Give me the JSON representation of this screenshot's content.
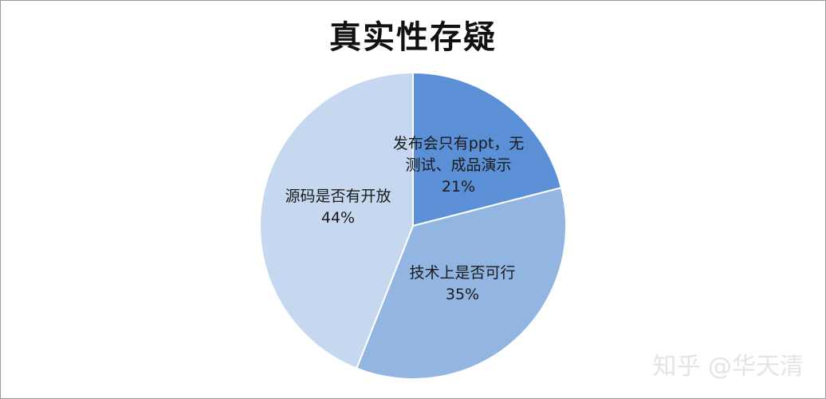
{
  "watermark": "知乎 @华天清",
  "chart_data": {
    "type": "pie",
    "title": "真实性存疑",
    "slices": [
      {
        "label_lines": [
          "发布会只有ppt，无",
          "测试、成品演示"
        ],
        "value": 21,
        "percent": "21%",
        "color": "#5b8fd6"
      },
      {
        "label_lines": [
          "技术上是否可行"
        ],
        "value": 35,
        "percent": "35%",
        "color": "#92b5e2"
      },
      {
        "label_lines": [
          "源码是否有开放"
        ],
        "value": 44,
        "percent": "44%",
        "color": "#c5d8ef"
      }
    ],
    "start": "12 o'clock",
    "direction": "clockwise",
    "legend": "none"
  }
}
